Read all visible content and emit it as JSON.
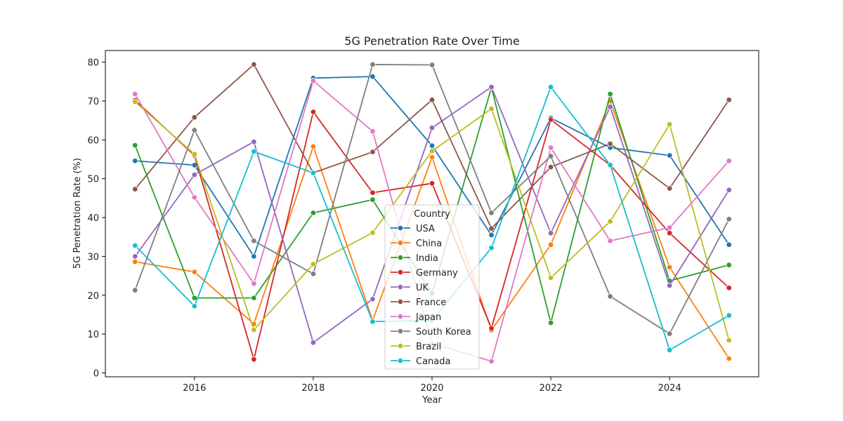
{
  "chart_data": {
    "type": "line",
    "title": "5G Penetration Rate Over Time",
    "xlabel": "Year",
    "ylabel": "5G Penetration Rate (%)",
    "x": [
      2015,
      2016,
      2017,
      2018,
      2019,
      2020,
      2021,
      2022,
      2023,
      2024,
      2025
    ],
    "xlim": [
      2014.5,
      2025.5
    ],
    "ylim": [
      -1,
      83
    ],
    "x_ticks": [
      2016,
      2018,
      2020,
      2022,
      2024
    ],
    "y_ticks": [
      0,
      10,
      20,
      30,
      40,
      50,
      60,
      70,
      80
    ],
    "grid": false,
    "legend": {
      "title": "Country",
      "placement": "center"
    },
    "series": [
      {
        "name": "USA",
        "color": "#1f77b4",
        "values": [
          54.6,
          53.5,
          30.0,
          75.9,
          76.3,
          58.5,
          35.5,
          65.6,
          58.0,
          56.0,
          33.0
        ]
      },
      {
        "name": "China",
        "color": "#ff7f0e",
        "values": [
          28.6,
          26.0,
          12.6,
          58.3,
          13.5,
          55.5,
          11.0,
          33.0,
          70.0,
          27.2,
          3.7
        ]
      },
      {
        "name": "India",
        "color": "#2ca02c",
        "values": [
          58.6,
          19.3,
          19.3,
          41.2,
          44.6,
          20.5,
          73.5,
          12.9,
          71.8,
          23.7,
          27.8
        ]
      },
      {
        "name": "Germany",
        "color": "#d62728",
        "values": [
          70.2,
          56.0,
          3.5,
          67.2,
          46.4,
          48.8,
          11.5,
          65.2,
          53.5,
          36.0,
          21.9
        ]
      },
      {
        "name": "UK",
        "color": "#9467bd",
        "values": [
          30.0,
          51.0,
          59.5,
          7.8,
          19.0,
          63.1,
          73.6,
          36.0,
          68.5,
          22.5,
          47.1
        ]
      },
      {
        "name": "France",
        "color": "#8c564b",
        "values": [
          47.3,
          65.8,
          79.4,
          51.5,
          56.9,
          70.3,
          37.2,
          53.0,
          59.0,
          47.5,
          70.3
        ]
      },
      {
        "name": "Japan",
        "color": "#e377c2",
        "values": [
          71.8,
          45.2,
          23.0,
          75.2,
          62.2,
          7.6,
          3.0,
          58.0,
          34.0,
          37.4,
          54.6
        ]
      },
      {
        "name": "South Korea",
        "color": "#7f7f7f",
        "values": [
          21.3,
          62.5,
          34.0,
          25.5,
          79.4,
          79.3,
          41.2,
          55.8,
          19.7,
          10.1,
          39.6
        ]
      },
      {
        "name": "Brazil",
        "color": "#bcbd22",
        "values": [
          69.8,
          56.3,
          11.1,
          28.0,
          36.1,
          57.1,
          68.0,
          24.5,
          39.0,
          64.0,
          8.4
        ]
      },
      {
        "name": "Canada",
        "color": "#17becf",
        "values": [
          32.8,
          17.2,
          57.0,
          51.5,
          13.2,
          13.5,
          32.2,
          73.6,
          53.5,
          5.9,
          14.8
        ]
      }
    ]
  }
}
